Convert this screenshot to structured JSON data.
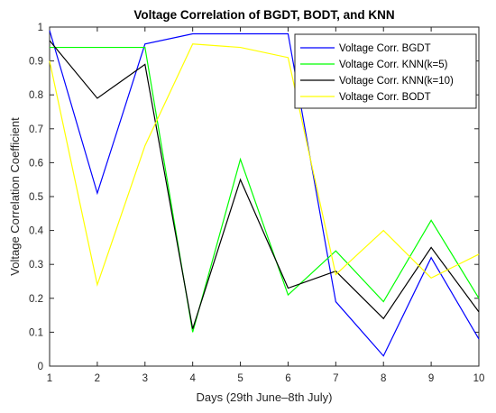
{
  "chart_data": {
    "type": "line",
    "title": "Voltage Correlation of BGDT, BODT, and KNN",
    "xlabel": "Days (29th June–8th July)",
    "ylabel": "Voltage Correlation Coefficient",
    "x": [
      1,
      2,
      3,
      4,
      5,
      6,
      7,
      8,
      9,
      10
    ],
    "xlim": [
      1,
      10
    ],
    "ylim": [
      0,
      1
    ],
    "xticks": [
      "1",
      "2",
      "3",
      "4",
      "5",
      "6",
      "7",
      "8",
      "9",
      "10"
    ],
    "yticks": [
      "0",
      "0.1",
      "0.2",
      "0.3",
      "0.4",
      "0.5",
      "0.6",
      "0.7",
      "0.8",
      "0.9",
      "1"
    ],
    "grid": false,
    "legend_position": "top-right",
    "series": [
      {
        "name": "Voltage Corr. BGDT",
        "color": "#0000ff",
        "values": [
          0.99,
          0.51,
          0.95,
          0.98,
          0.98,
          0.98,
          0.19,
          0.03,
          0.32,
          0.08
        ]
      },
      {
        "name": "Voltage Corr. KNN(k=5)",
        "color": "#00ff00",
        "values": [
          0.94,
          0.94,
          0.94,
          0.1,
          0.61,
          0.21,
          0.34,
          0.19,
          0.43,
          0.2
        ]
      },
      {
        "name": "Voltage Corr. KNN(k=10)",
        "color": "#000000",
        "values": [
          0.96,
          0.79,
          0.89,
          0.11,
          0.55,
          0.23,
          0.28,
          0.14,
          0.35,
          0.16
        ]
      },
      {
        "name": "Voltage Corr. BODT",
        "color": "#ffff00",
        "values": [
          0.9,
          0.24,
          0.65,
          0.95,
          0.94,
          0.91,
          0.27,
          0.4,
          0.26,
          0.33
        ]
      }
    ]
  }
}
